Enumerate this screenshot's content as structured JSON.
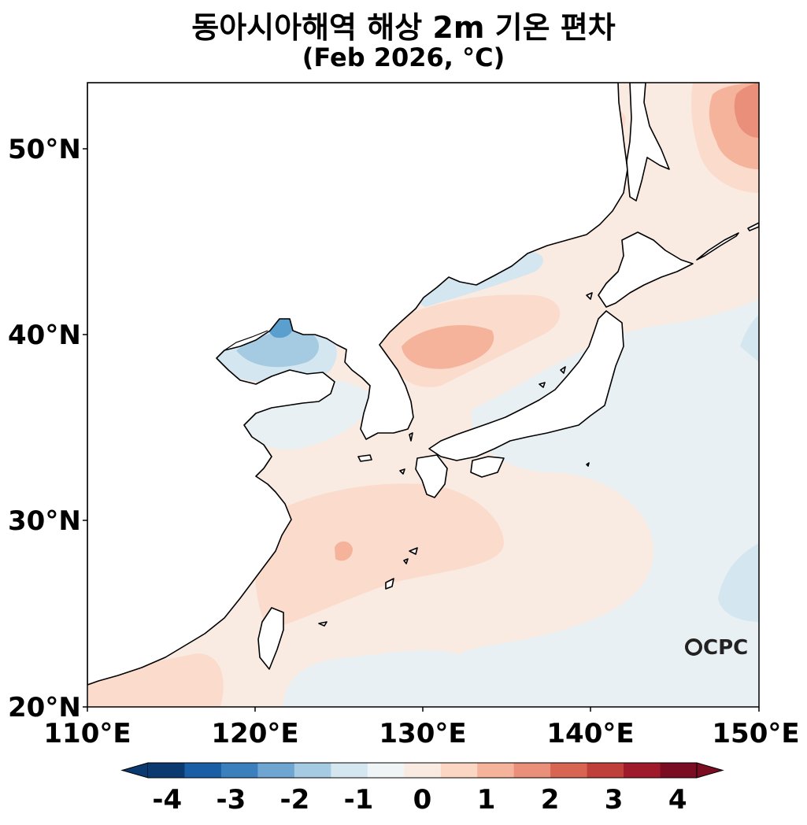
{
  "title": "동아시아해역 해상 2m 기온 편차",
  "subtitle": "(Feb 2026, °C)",
  "map": {
    "lon_range": [
      110,
      150
    ],
    "lat_range": [
      20,
      53.5
    ],
    "lat_ticks": [
      "50°N",
      "40°N",
      "30°N",
      "20°N"
    ],
    "lon_ticks": [
      "110°E",
      "120°E",
      "130°E",
      "140°E",
      "150°E"
    ],
    "field": "sea-surface 2m air temperature anomaly",
    "colors": {
      "land": "#ffffff",
      "coastline": "#000000",
      "near_zero_pos": "#f9ebe2",
      "near_zero_neg": "#e9f0f3",
      "anom_pos_1": "#fbdccc",
      "anom_pos_15": "#f4b39a",
      "anom_pos_2": "#ea907a",
      "anom_neg_1": "#d4e6f0",
      "anom_neg_15": "#a5cbe2",
      "anom_neg_2": "#5a9fcd"
    }
  },
  "colorbar": {
    "labels": [
      "-4",
      "-3",
      "-2",
      "-1",
      "0",
      "1",
      "2",
      "3",
      "4"
    ],
    "colors": [
      "#0a3a70",
      "#1a5fa5",
      "#3b80bd",
      "#6fa6d1",
      "#a5cbe2",
      "#d4e6f0",
      "#eff4f6",
      "#f9ebe2",
      "#fbd6c3",
      "#f4b39a",
      "#ea907a",
      "#d86552",
      "#bf3f3a",
      "#9f1a2a",
      "#7a0d22"
    ],
    "extend": "both"
  },
  "logo": "CPC"
}
